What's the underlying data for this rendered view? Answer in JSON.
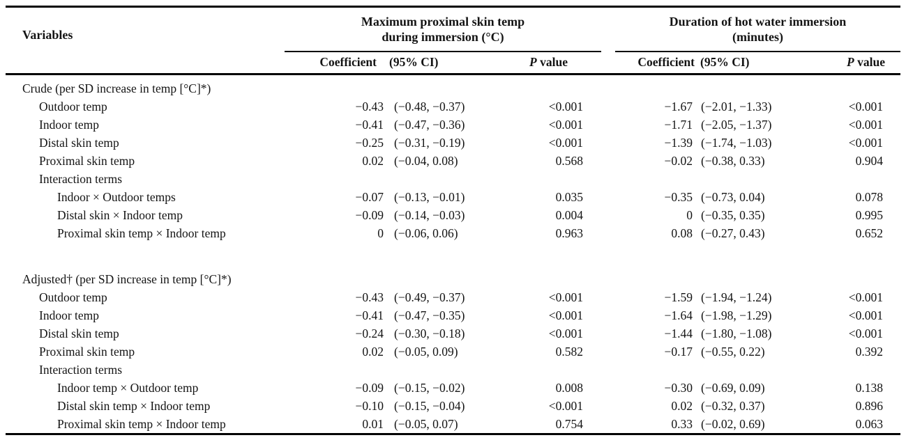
{
  "page": {
    "background_color": "#ffffff",
    "text_color": "#141414",
    "rule_color": "#000000"
  },
  "table": {
    "header": {
      "variables_label": "Variables",
      "groups": [
        {
          "line1": "Maximum proximal skin temp",
          "line2": "during immersion (°C)"
        },
        {
          "line1": "Duration of hot water immersion",
          "line2": "(minutes)"
        }
      ],
      "sub_headers": {
        "coefficient": "Coefficient",
        "ci": "(95% CI)",
        "p_italic": "P",
        "p_rest": " value"
      }
    },
    "rows": [
      {
        "label": "Crude (per SD increase in temp [°C]*)",
        "indent": 0,
        "g1": [
          "",
          "",
          ""
        ],
        "g2": [
          "",
          "",
          ""
        ]
      },
      {
        "label": "Outdoor temp",
        "indent": 1,
        "g1": [
          "−0.43",
          "(−0.48, −0.37)",
          "<0.001"
        ],
        "g2": [
          "−1.67",
          "(−2.01, −1.33)",
          "<0.001"
        ]
      },
      {
        "label": "Indoor temp",
        "indent": 1,
        "g1": [
          "−0.41",
          "(−0.47, −0.36)",
          "<0.001"
        ],
        "g2": [
          "−1.71",
          "(−2.05, −1.37)",
          "<0.001"
        ]
      },
      {
        "label": "Distal skin temp",
        "indent": 1,
        "g1": [
          "−0.25",
          "(−0.31, −0.19)",
          "<0.001"
        ],
        "g2": [
          "−1.39",
          "(−1.74, −1.03)",
          "<0.001"
        ]
      },
      {
        "label": "Proximal skin temp",
        "indent": 1,
        "g1": [
          "0.02",
          "(−0.04, 0.08)",
          "0.568"
        ],
        "g2": [
          "−0.02",
          "(−0.38, 0.33)",
          "0.904"
        ]
      },
      {
        "label": "Interaction terms",
        "indent": 1,
        "g1": [
          "",
          "",
          ""
        ],
        "g2": [
          "",
          "",
          ""
        ]
      },
      {
        "label": "Indoor × Outdoor temps",
        "indent": 2,
        "g1": [
          "−0.07",
          "(−0.13, −0.01)",
          "0.035"
        ],
        "g2": [
          "−0.35",
          "(−0.73, 0.04)",
          "0.078"
        ]
      },
      {
        "label": "Distal skin × Indoor temp",
        "indent": 2,
        "g1": [
          "−0.09",
          "(−0.14, −0.03)",
          "0.004"
        ],
        "g2": [
          "0",
          "(−0.35, 0.35)",
          "0.995"
        ]
      },
      {
        "label": "Proximal skin temp × Indoor temp",
        "indent": 2,
        "g1": [
          "0",
          "(−0.06, 0.06)",
          "0.963"
        ],
        "g2": [
          "0.08",
          "(−0.27, 0.43)",
          "0.652"
        ]
      },
      {
        "blank": true
      },
      {
        "label": "Adjusted† (per SD increase in temp [°C]*)",
        "indent": 0,
        "g1": [
          "",
          "",
          ""
        ],
        "g2": [
          "",
          "",
          ""
        ]
      },
      {
        "label": "Outdoor temp",
        "indent": 1,
        "g1": [
          "−0.43",
          "(−0.49, −0.37)",
          "<0.001"
        ],
        "g2": [
          "−1.59",
          "(−1.94, −1.24)",
          "<0.001"
        ]
      },
      {
        "label": "Indoor temp",
        "indent": 1,
        "g1": [
          "−0.41",
          "(−0.47, −0.35)",
          "<0.001"
        ],
        "g2": [
          "−1.64",
          "(−1.98, −1.29)",
          "<0.001"
        ]
      },
      {
        "label": "Distal skin temp",
        "indent": 1,
        "g1": [
          "−0.24",
          "(−0.30, −0.18)",
          "<0.001"
        ],
        "g2": [
          "−1.44",
          "(−1.80, −1.08)",
          "<0.001"
        ]
      },
      {
        "label": "Proximal skin temp",
        "indent": 1,
        "g1": [
          "0.02",
          "(−0.05, 0.09)",
          "0.582"
        ],
        "g2": [
          "−0.17",
          "(−0.55, 0.22)",
          "0.392"
        ]
      },
      {
        "label": "Interaction terms",
        "indent": 1,
        "g1": [
          "",
          "",
          ""
        ],
        "g2": [
          "",
          "",
          ""
        ]
      },
      {
        "label": "Indoor temp × Outdoor temp",
        "indent": 2,
        "g1": [
          "−0.09",
          "(−0.15, −0.02)",
          "0.008"
        ],
        "g2": [
          "−0.30",
          "(−0.69, 0.09)",
          "0.138"
        ]
      },
      {
        "label": "Distal skin temp × Indoor temp",
        "indent": 2,
        "g1": [
          "−0.10",
          "(−0.15, −0.04)",
          "<0.001"
        ],
        "g2": [
          "0.02",
          "(−0.32, 0.37)",
          "0.896"
        ]
      },
      {
        "label": "Proximal skin temp × Indoor temp",
        "indent": 2,
        "g1": [
          "0.01",
          "(−0.05, 0.07)",
          "0.754"
        ],
        "g2": [
          "0.33",
          "(−0.02, 0.69)",
          "0.063"
        ]
      }
    ]
  }
}
